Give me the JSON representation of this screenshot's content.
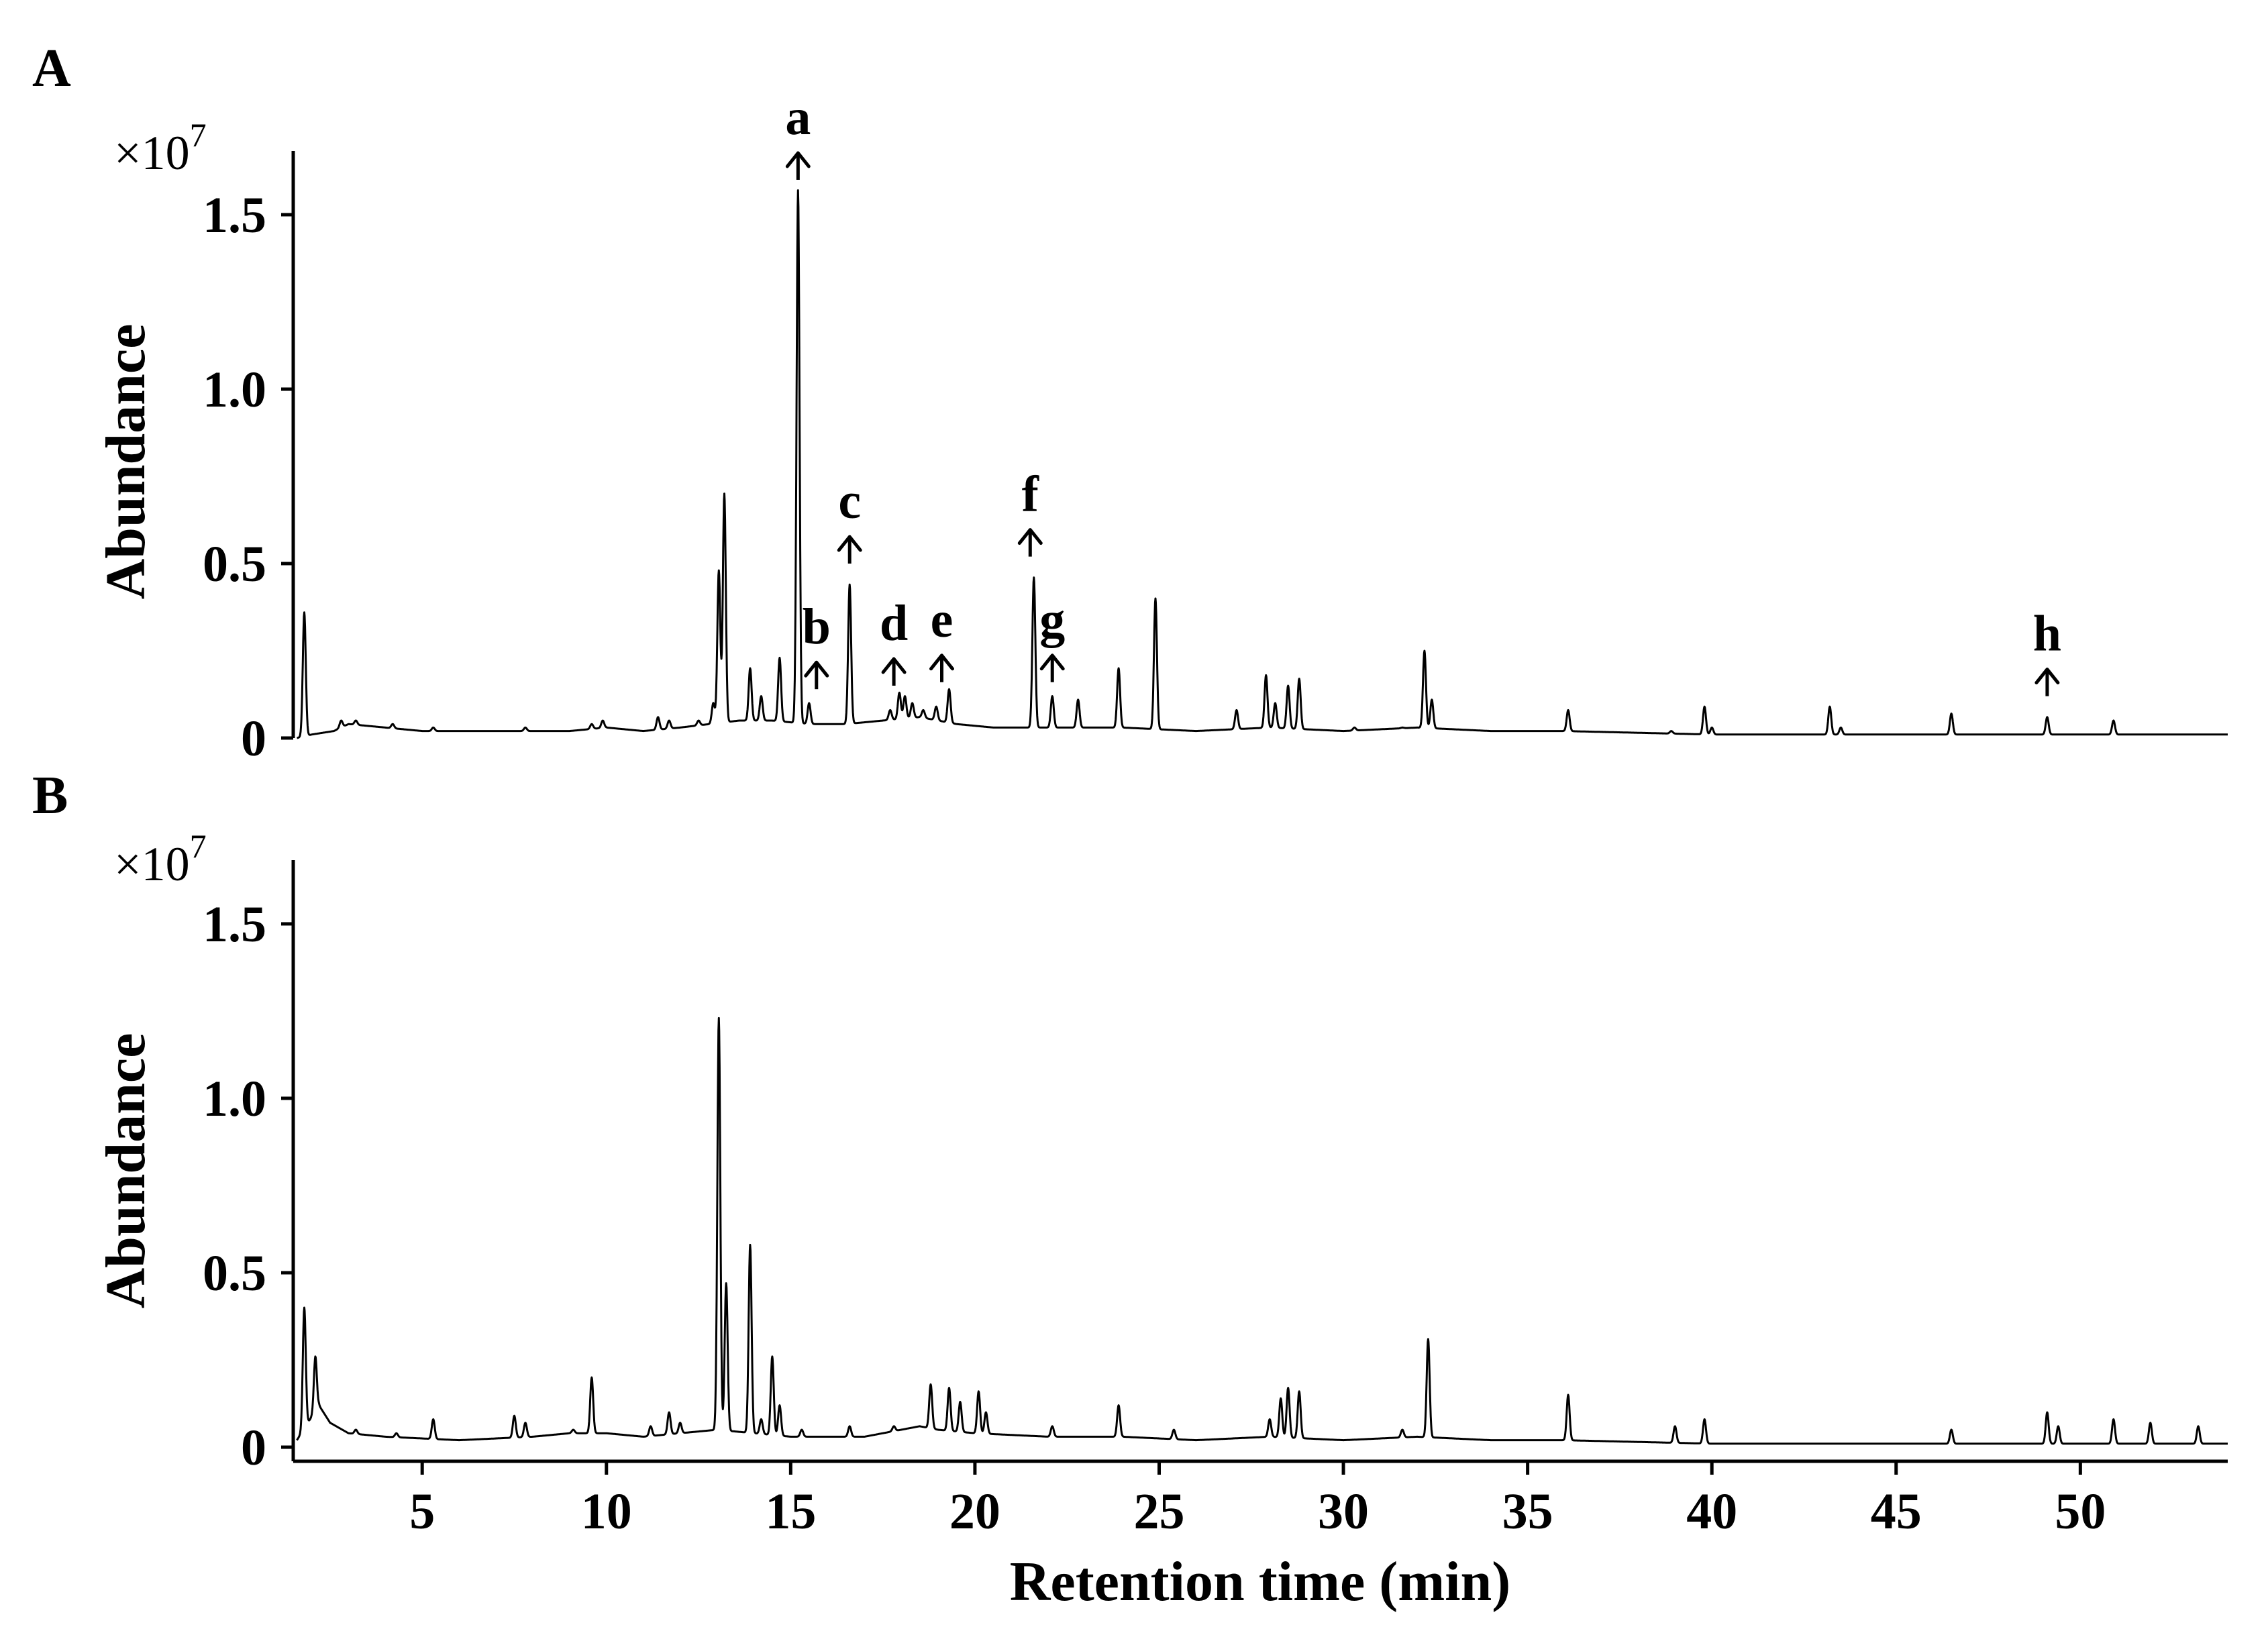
{
  "chart_data": [
    {
      "type": "line",
      "panel_label": "A",
      "scale_prefix": "×10",
      "scale_exponent": "7",
      "ylabel": "Abundance",
      "xlabel": "",
      "xlim": [
        1.5,
        54
      ],
      "ylim": [
        0,
        1.65
      ],
      "yticks": [
        {
          "value": 0,
          "label": "0"
        },
        {
          "value": 0.5,
          "label": "0.5"
        },
        {
          "value": 1.0,
          "label": "1.0"
        },
        {
          "value": 1.5,
          "label": "1.5"
        }
      ],
      "baseline": [
        [
          1.6,
          0.0
        ],
        [
          2.0,
          0.01
        ],
        [
          2.6,
          0.02
        ],
        [
          3.0,
          0.04
        ],
        [
          4.0,
          0.03
        ],
        [
          5.0,
          0.02
        ],
        [
          6.0,
          0.02
        ],
        [
          7.0,
          0.02
        ],
        [
          8.0,
          0.02
        ],
        [
          9.0,
          0.02
        ],
        [
          10.0,
          0.03
        ],
        [
          11.0,
          0.02
        ],
        [
          12.0,
          0.03
        ],
        [
          12.8,
          0.04
        ],
        [
          13.6,
          0.05
        ],
        [
          14.5,
          0.05
        ],
        [
          15.5,
          0.04
        ],
        [
          16.5,
          0.04
        ],
        [
          17.5,
          0.05
        ],
        [
          18.5,
          0.06
        ],
        [
          19.5,
          0.04
        ],
        [
          20.5,
          0.03
        ],
        [
          21.5,
          0.03
        ],
        [
          22.5,
          0.03
        ],
        [
          24.0,
          0.03
        ],
        [
          26.0,
          0.02
        ],
        [
          28.0,
          0.03
        ],
        [
          30.0,
          0.02
        ],
        [
          32.0,
          0.03
        ],
        [
          34.0,
          0.02
        ],
        [
          36.0,
          0.02
        ],
        [
          40.0,
          0.01
        ],
        [
          45.0,
          0.01
        ],
        [
          50.0,
          0.01
        ],
        [
          54.0,
          0.01
        ]
      ],
      "peaks": [
        [
          1.8,
          0.36
        ],
        [
          2.8,
          0.05
        ],
        [
          3.2,
          0.05
        ],
        [
          4.2,
          0.04
        ],
        [
          5.3,
          0.03
        ],
        [
          7.8,
          0.03
        ],
        [
          9.6,
          0.04
        ],
        [
          9.9,
          0.05
        ],
        [
          11.4,
          0.06
        ],
        [
          11.7,
          0.05
        ],
        [
          12.5,
          0.05
        ],
        [
          12.9,
          0.1
        ],
        [
          13.05,
          0.48
        ],
        [
          13.2,
          0.7
        ],
        [
          13.9,
          0.2
        ],
        [
          14.2,
          0.12
        ],
        [
          14.7,
          0.23
        ],
        [
          15.2,
          1.57
        ],
        [
          15.5,
          0.1
        ],
        [
          16.6,
          0.44
        ],
        [
          17.7,
          0.08
        ],
        [
          17.95,
          0.13
        ],
        [
          18.1,
          0.12
        ],
        [
          18.3,
          0.1
        ],
        [
          18.6,
          0.08
        ],
        [
          18.95,
          0.09
        ],
        [
          19.3,
          0.14
        ],
        [
          21.6,
          0.46
        ],
        [
          22.1,
          0.12
        ],
        [
          22.8,
          0.11
        ],
        [
          23.9,
          0.2
        ],
        [
          24.9,
          0.4
        ],
        [
          27.1,
          0.08
        ],
        [
          27.9,
          0.18
        ],
        [
          28.15,
          0.1
        ],
        [
          28.5,
          0.15
        ],
        [
          28.8,
          0.17
        ],
        [
          30.3,
          0.03
        ],
        [
          31.6,
          0.03
        ],
        [
          32.2,
          0.25
        ],
        [
          32.4,
          0.11
        ],
        [
          36.1,
          0.08
        ],
        [
          38.9,
          0.02
        ],
        [
          39.8,
          0.09
        ],
        [
          40.0,
          0.03
        ],
        [
          43.2,
          0.09
        ],
        [
          43.5,
          0.03
        ],
        [
          46.5,
          0.07
        ],
        [
          49.1,
          0.06
        ],
        [
          50.9,
          0.05
        ]
      ],
      "annotations": [
        {
          "letter": "a",
          "x": 15.2,
          "base": 1.6
        },
        {
          "letter": "b",
          "x": 15.7,
          "base": 0.14
        },
        {
          "letter": "c",
          "x": 16.6,
          "base": 0.5
        },
        {
          "letter": "d",
          "x": 17.8,
          "base": 0.15
        },
        {
          "letter": "e",
          "x": 19.1,
          "base": 0.16
        },
        {
          "letter": "f",
          "x": 21.5,
          "base": 0.52
        },
        {
          "letter": "g",
          "x": 22.1,
          "base": 0.16
        },
        {
          "letter": "h",
          "x": 49.1,
          "base": 0.12
        }
      ]
    },
    {
      "type": "line",
      "panel_label": "B",
      "scale_prefix": "×10",
      "scale_exponent": "7",
      "ylabel": "Abundance",
      "xlabel": "Retention time (min)",
      "xlim": [
        1.5,
        54
      ],
      "ylim": [
        0,
        1.65
      ],
      "yticks": [
        {
          "value": 0,
          "label": "0"
        },
        {
          "value": 0.5,
          "label": "0.5"
        },
        {
          "value": 1.0,
          "label": "1.0"
        },
        {
          "value": 1.5,
          "label": "1.5"
        }
      ],
      "xticks": [
        {
          "value": 5,
          "label": "5"
        },
        {
          "value": 10,
          "label": "10"
        },
        {
          "value": 15,
          "label": "15"
        },
        {
          "value": 20,
          "label": "20"
        },
        {
          "value": 25,
          "label": "25"
        },
        {
          "value": 30,
          "label": "30"
        },
        {
          "value": 35,
          "label": "35"
        },
        {
          "value": 40,
          "label": "40"
        },
        {
          "value": 45,
          "label": "45"
        },
        {
          "value": 50,
          "label": "50"
        }
      ],
      "baseline": [
        [
          1.6,
          0.02
        ],
        [
          2.2,
          0.12
        ],
        [
          2.5,
          0.07
        ],
        [
          3.0,
          0.04
        ],
        [
          4.0,
          0.03
        ],
        [
          6.0,
          0.02
        ],
        [
          8.0,
          0.03
        ],
        [
          9.0,
          0.04
        ],
        [
          10.0,
          0.04
        ],
        [
          11.0,
          0.03
        ],
        [
          12.0,
          0.04
        ],
        [
          13.0,
          0.05
        ],
        [
          14.0,
          0.04
        ],
        [
          15.0,
          0.03
        ],
        [
          17.0,
          0.03
        ],
        [
          18.5,
          0.06
        ],
        [
          19.0,
          0.05
        ],
        [
          20.0,
          0.04
        ],
        [
          22.0,
          0.03
        ],
        [
          24.0,
          0.03
        ],
        [
          26.0,
          0.02
        ],
        [
          28.0,
          0.03
        ],
        [
          30.0,
          0.02
        ],
        [
          32.0,
          0.03
        ],
        [
          34.0,
          0.02
        ],
        [
          36.0,
          0.02
        ],
        [
          40.0,
          0.01
        ],
        [
          45.0,
          0.01
        ],
        [
          54.0,
          0.01
        ]
      ],
      "peaks": [
        [
          1.8,
          0.4
        ],
        [
          2.1,
          0.26
        ],
        [
          3.2,
          0.05
        ],
        [
          4.3,
          0.04
        ],
        [
          5.3,
          0.08
        ],
        [
          7.5,
          0.09
        ],
        [
          7.8,
          0.07
        ],
        [
          9.1,
          0.05
        ],
        [
          9.6,
          0.2
        ],
        [
          11.2,
          0.06
        ],
        [
          11.7,
          0.1
        ],
        [
          12.0,
          0.07
        ],
        [
          13.05,
          1.23
        ],
        [
          13.25,
          0.47
        ],
        [
          13.9,
          0.58
        ],
        [
          14.2,
          0.08
        ],
        [
          14.5,
          0.26
        ],
        [
          14.7,
          0.12
        ],
        [
          15.3,
          0.05
        ],
        [
          16.6,
          0.06
        ],
        [
          17.8,
          0.06
        ],
        [
          18.8,
          0.18
        ],
        [
          19.3,
          0.17
        ],
        [
          19.6,
          0.13
        ],
        [
          20.1,
          0.16
        ],
        [
          20.3,
          0.1
        ],
        [
          22.1,
          0.06
        ],
        [
          23.9,
          0.12
        ],
        [
          25.4,
          0.05
        ],
        [
          28.0,
          0.08
        ],
        [
          28.3,
          0.14
        ],
        [
          28.5,
          0.17
        ],
        [
          28.8,
          0.16
        ],
        [
          31.6,
          0.05
        ],
        [
          32.3,
          0.31
        ],
        [
          36.1,
          0.15
        ],
        [
          39.0,
          0.06
        ],
        [
          39.8,
          0.08
        ],
        [
          46.5,
          0.05
        ],
        [
          49.1,
          0.1
        ],
        [
          49.4,
          0.06
        ],
        [
          50.9,
          0.08
        ],
        [
          51.9,
          0.07
        ],
        [
          53.2,
          0.06
        ]
      ]
    }
  ]
}
